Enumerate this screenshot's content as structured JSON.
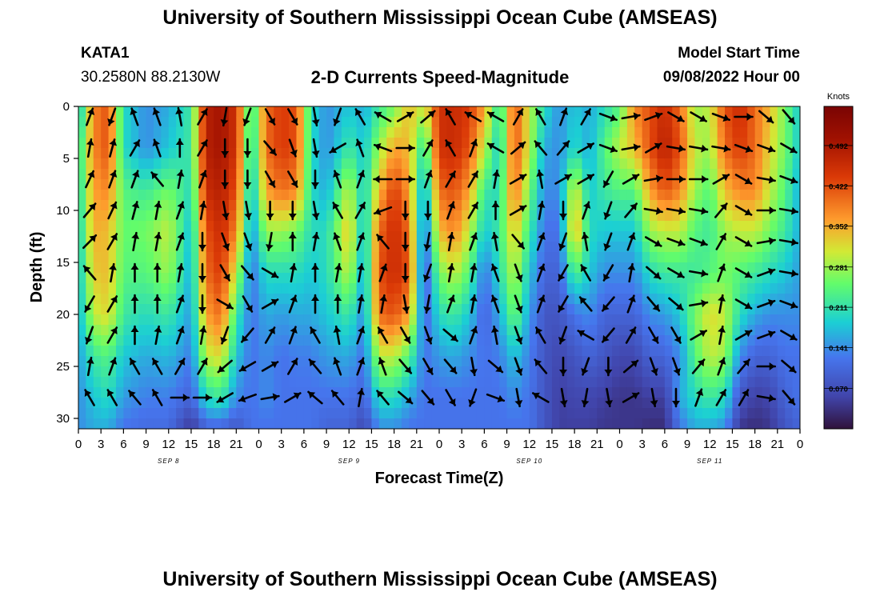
{
  "header": {
    "title": "University of Southern Mississippi Ocean Cube (AMSEAS)",
    "station": "KATA1",
    "coordinates": "30.2580N  88.2130W",
    "subtitle": "2-D Currents Speed-Magnitude",
    "model_start_label": "Model Start Time",
    "model_start_value": "09/08/2022 Hour 00"
  },
  "footer": {
    "title": "University of Southern Mississippi Ocean Cube (AMSEAS)"
  },
  "chart_data": {
    "type": "heatmap",
    "xlabel": "Forecast Time(Z)",
    "ylabel": "Depth (ft)",
    "x_range_hours": [
      0,
      96
    ],
    "y_range_ft": [
      0,
      31
    ],
    "x_tick_labels": [
      "0",
      "3",
      "6",
      "9",
      "12",
      "15",
      "18",
      "21",
      "0",
      "3",
      "6",
      "9",
      "12",
      "15",
      "18",
      "21",
      "0",
      "3",
      "6",
      "9",
      "12",
      "15",
      "18",
      "21",
      "0",
      "3",
      "6",
      "9",
      "12",
      "15",
      "18",
      "21",
      "0"
    ],
    "y_ticks": [
      0,
      5,
      10,
      15,
      20,
      25,
      30
    ],
    "date_labels": [
      {
        "label": "SEP 8",
        "hour": 12
      },
      {
        "label": "SEP 9",
        "hour": 36
      },
      {
        "label": "SEP 10",
        "hour": 60
      },
      {
        "label": "SEP 11",
        "hour": 84
      }
    ],
    "colorbar": {
      "unit": "Knots",
      "ticks": [
        "0.492",
        "0.422",
        "0.352",
        "0.281",
        "0.211",
        "0.141",
        "0.070"
      ],
      "tick_values": [
        0.492,
        0.422,
        0.352,
        0.281,
        0.211,
        0.141,
        0.07
      ],
      "range": [
        0,
        0.56
      ]
    },
    "speed_profiles": [
      {
        "hour": 0,
        "speeds": [
          0.16,
          0.2,
          0.19,
          0.18,
          0.17,
          0.16,
          0.15,
          0.14,
          0.14
        ]
      },
      {
        "hour": 2,
        "speeds": [
          0.38,
          0.38,
          0.36,
          0.35,
          0.33,
          0.3,
          0.22,
          0.18,
          0.16
        ]
      },
      {
        "hour": 4,
        "speeds": [
          0.42,
          0.42,
          0.38,
          0.34,
          0.34,
          0.32,
          0.24,
          0.2,
          0.16
        ]
      },
      {
        "hour": 6,
        "speeds": [
          0.2,
          0.2,
          0.24,
          0.25,
          0.24,
          0.22,
          0.18,
          0.15,
          0.12
        ]
      },
      {
        "hour": 9,
        "speeds": [
          0.14,
          0.14,
          0.22,
          0.26,
          0.24,
          0.2,
          0.16,
          0.13,
          0.11
        ]
      },
      {
        "hour": 12,
        "speeds": [
          0.16,
          0.18,
          0.26,
          0.3,
          0.28,
          0.22,
          0.17,
          0.13,
          0.11
        ]
      },
      {
        "hour": 15,
        "speeds": [
          0.22,
          0.22,
          0.2,
          0.17,
          0.16,
          0.15,
          0.13,
          0.1,
          0.04
        ]
      },
      {
        "hour": 17,
        "speeds": [
          0.48,
          0.48,
          0.46,
          0.42,
          0.4,
          0.36,
          0.3,
          0.2,
          0.1
        ]
      },
      {
        "hour": 19,
        "speeds": [
          0.5,
          0.5,
          0.48,
          0.46,
          0.44,
          0.4,
          0.32,
          0.22,
          0.1
        ]
      },
      {
        "hour": 21,
        "speeds": [
          0.45,
          0.45,
          0.42,
          0.38,
          0.3,
          0.22,
          0.18,
          0.14,
          0.08
        ]
      },
      {
        "hour": 23,
        "speeds": [
          0.2,
          0.18,
          0.16,
          0.14,
          0.12,
          0.12,
          0.12,
          0.12,
          0.12
        ]
      },
      {
        "hour": 25,
        "speeds": [
          0.4,
          0.4,
          0.36,
          0.28,
          0.2,
          0.16,
          0.14,
          0.14,
          0.12
        ]
      },
      {
        "hour": 27,
        "speeds": [
          0.44,
          0.44,
          0.4,
          0.28,
          0.2,
          0.15,
          0.12,
          0.12,
          0.12
        ]
      },
      {
        "hour": 29,
        "speeds": [
          0.42,
          0.42,
          0.38,
          0.26,
          0.2,
          0.16,
          0.13,
          0.12,
          0.12
        ]
      },
      {
        "hour": 31,
        "speeds": [
          0.2,
          0.2,
          0.2,
          0.2,
          0.18,
          0.16,
          0.13,
          0.12,
          0.12
        ]
      },
      {
        "hour": 33,
        "speeds": [
          0.14,
          0.14,
          0.16,
          0.2,
          0.2,
          0.18,
          0.15,
          0.12,
          0.1
        ]
      },
      {
        "hour": 36,
        "speeds": [
          0.18,
          0.22,
          0.3,
          0.34,
          0.3,
          0.22,
          0.16,
          0.12,
          0.1
        ]
      },
      {
        "hour": 38,
        "speeds": [
          0.16,
          0.18,
          0.18,
          0.16,
          0.15,
          0.14,
          0.12,
          0.1,
          0.06
        ]
      },
      {
        "hour": 40,
        "speeds": [
          0.22,
          0.28,
          0.34,
          0.4,
          0.42,
          0.4,
          0.3,
          0.2,
          0.14
        ]
      },
      {
        "hour": 42,
        "speeds": [
          0.26,
          0.36,
          0.44,
          0.46,
          0.46,
          0.42,
          0.3,
          0.2,
          0.14
        ]
      },
      {
        "hour": 44,
        "speeds": [
          0.34,
          0.34,
          0.36,
          0.4,
          0.42,
          0.36,
          0.24,
          0.16,
          0.12
        ]
      },
      {
        "hour": 46,
        "speeds": [
          0.3,
          0.2,
          0.14,
          0.1,
          0.08,
          0.1,
          0.12,
          0.12,
          0.12
        ]
      },
      {
        "hour": 48,
        "speeds": [
          0.45,
          0.45,
          0.4,
          0.34,
          0.26,
          0.2,
          0.15,
          0.12,
          0.12
        ]
      },
      {
        "hour": 50,
        "speeds": [
          0.46,
          0.46,
          0.42,
          0.38,
          0.3,
          0.22,
          0.16,
          0.12,
          0.12
        ]
      },
      {
        "hour": 52,
        "speeds": [
          0.44,
          0.42,
          0.36,
          0.3,
          0.24,
          0.18,
          0.14,
          0.12,
          0.12
        ]
      },
      {
        "hour": 54,
        "speeds": [
          0.36,
          0.3,
          0.22,
          0.18,
          0.12,
          0.1,
          0.12,
          0.12,
          0.12
        ]
      },
      {
        "hour": 56,
        "speeds": [
          0.2,
          0.18,
          0.2,
          0.22,
          0.2,
          0.16,
          0.13,
          0.12,
          0.12
        ]
      },
      {
        "hour": 58,
        "speeds": [
          0.42,
          0.42,
          0.4,
          0.34,
          0.3,
          0.26,
          0.18,
          0.14,
          0.12
        ]
      },
      {
        "hour": 60,
        "speeds": [
          0.3,
          0.3,
          0.26,
          0.22,
          0.18,
          0.15,
          0.13,
          0.12,
          0.12
        ]
      },
      {
        "hour": 62,
        "speeds": [
          0.2,
          0.16,
          0.14,
          0.12,
          0.1,
          0.08,
          0.08,
          0.08,
          0.08
        ]
      },
      {
        "hour": 64,
        "speeds": [
          0.14,
          0.14,
          0.14,
          0.12,
          0.1,
          0.08,
          0.06,
          0.05,
          0.05
        ]
      },
      {
        "hour": 66,
        "speeds": [
          0.18,
          0.2,
          0.32,
          0.36,
          0.24,
          0.12,
          0.08,
          0.06,
          0.05
        ]
      },
      {
        "hour": 68,
        "speeds": [
          0.16,
          0.16,
          0.18,
          0.2,
          0.18,
          0.14,
          0.1,
          0.06,
          0.05
        ]
      },
      {
        "hour": 70,
        "speeds": [
          0.2,
          0.24,
          0.22,
          0.18,
          0.14,
          0.1,
          0.08,
          0.05,
          0.04
        ]
      },
      {
        "hour": 72,
        "speeds": [
          0.24,
          0.3,
          0.24,
          0.18,
          0.14,
          0.1,
          0.06,
          0.04,
          0.04
        ]
      },
      {
        "hour": 74,
        "speeds": [
          0.38,
          0.34,
          0.24,
          0.18,
          0.14,
          0.1,
          0.06,
          0.04,
          0.04
        ]
      },
      {
        "hour": 76,
        "speeds": [
          0.42,
          0.42,
          0.36,
          0.28,
          0.2,
          0.14,
          0.1,
          0.05,
          0.03
        ]
      },
      {
        "hour": 78,
        "speeds": [
          0.46,
          0.48,
          0.42,
          0.3,
          0.22,
          0.15,
          0.1,
          0.05,
          0.03
        ]
      },
      {
        "hour": 80,
        "speeds": [
          0.4,
          0.42,
          0.38,
          0.3,
          0.22,
          0.18,
          0.14,
          0.16,
          0.12
        ]
      },
      {
        "hour": 82,
        "speeds": [
          0.28,
          0.3,
          0.28,
          0.24,
          0.22,
          0.26,
          0.24,
          0.2,
          0.16
        ]
      },
      {
        "hour": 84,
        "speeds": [
          0.3,
          0.28,
          0.24,
          0.22,
          0.24,
          0.32,
          0.3,
          0.22,
          0.16
        ]
      },
      {
        "hour": 86,
        "speeds": [
          0.42,
          0.4,
          0.34,
          0.28,
          0.26,
          0.3,
          0.28,
          0.2,
          0.14
        ]
      },
      {
        "hour": 88,
        "speeds": [
          0.46,
          0.44,
          0.38,
          0.3,
          0.24,
          0.2,
          0.14,
          0.08,
          0.04
        ]
      },
      {
        "hour": 90,
        "speeds": [
          0.4,
          0.4,
          0.38,
          0.3,
          0.22,
          0.16,
          0.1,
          0.05,
          0.03
        ]
      },
      {
        "hour": 92,
        "speeds": [
          0.34,
          0.32,
          0.3,
          0.26,
          0.2,
          0.14,
          0.1,
          0.06,
          0.04
        ]
      },
      {
        "hour": 94,
        "speeds": [
          0.26,
          0.26,
          0.24,
          0.22,
          0.18,
          0.14,
          0.12,
          0.1,
          0.08
        ]
      },
      {
        "hour": 96,
        "speeds": [
          0.18,
          0.18,
          0.16,
          0.16,
          0.15,
          0.14,
          0.12,
          0.12,
          0.1
        ]
      }
    ],
    "profile_depths_ft": [
      0,
      4,
      8,
      12,
      16,
      20,
      24,
      28,
      31
    ],
    "vector_hours": [
      0,
      3,
      6,
      9,
      12,
      15,
      18,
      21,
      24,
      27,
      30,
      33,
      36,
      39,
      42,
      45,
      48,
      51,
      54,
      57,
      60,
      63,
      66,
      69,
      72,
      75,
      78,
      81,
      84,
      87,
      90,
      93
    ],
    "vector_depths_ft": [
      1,
      4,
      7,
      10,
      13,
      16,
      19,
      22,
      25,
      28
    ],
    "vector_direction_deg": [
      [
        20,
        10,
        25,
        40,
        45,
        320,
        210,
        200,
        10,
        330
      ],
      [
        200,
        15,
        20,
        25,
        30,
        10,
        30,
        30,
        20,
        330
      ],
      [
        340,
        30,
        20,
        15,
        10,
        0,
        0,
        0,
        330,
        320
      ],
      [
        340,
        340,
        320,
        10,
        10,
        0,
        0,
        10,
        330,
        330
      ],
      [
        350,
        0,
        10,
        20,
        20,
        10,
        20,
        20,
        30,
        90
      ],
      [
        30,
        30,
        20,
        10,
        180,
        180,
        180,
        10,
        30,
        90
      ],
      [
        190,
        180,
        180,
        170,
        160,
        150,
        120,
        200,
        230,
        240
      ],
      [
        200,
        180,
        180,
        170,
        160,
        140,
        150,
        220,
        240,
        250
      ],
      [
        150,
        140,
        150,
        180,
        190,
        120,
        60,
        30,
        60,
        80
      ],
      [
        150,
        160,
        150,
        180,
        0,
        10,
        20,
        20,
        30,
        60
      ],
      [
        170,
        170,
        180,
        170,
        10,
        0,
        0,
        330,
        320,
        310
      ],
      [
        200,
        240,
        340,
        330,
        340,
        10,
        0,
        350,
        340,
        320
      ],
      [
        330,
        340,
        20,
        30,
        20,
        10,
        10,
        20,
        20,
        10
      ],
      [
        300,
        290,
        270,
        250,
        320,
        20,
        10,
        330,
        340,
        320
      ],
      [
        60,
        90,
        90,
        180,
        180,
        180,
        170,
        150,
        140,
        130
      ],
      [
        50,
        30,
        20,
        180,
        190,
        200,
        190,
        160,
        150,
        140
      ],
      [
        330,
        330,
        30,
        20,
        10,
        10,
        20,
        130,
        140,
        150
      ],
      [
        300,
        20,
        30,
        30,
        20,
        10,
        10,
        20,
        170,
        200
      ],
      [
        300,
        300,
        10,
        0,
        350,
        340,
        340,
        350,
        130,
        110
      ],
      [
        30,
        50,
        60,
        60,
        140,
        160,
        160,
        160,
        160,
        170
      ],
      [
        330,
        320,
        350,
        10,
        20,
        20,
        20,
        330,
        320,
        300
      ],
      [
        20,
        40,
        60,
        180,
        200,
        210,
        210,
        200,
        180,
        170
      ],
      [
        30,
        60,
        60,
        20,
        350,
        330,
        320,
        300,
        200,
        190
      ],
      [
        110,
        110,
        210,
        200,
        200,
        210,
        220,
        220,
        180,
        170
      ],
      [
        80,
        80,
        60,
        40,
        20,
        10,
        20,
        30,
        50,
        60
      ],
      [
        70,
        60,
        80,
        100,
        120,
        130,
        140,
        150,
        160,
        170
      ],
      [
        120,
        100,
        90,
        100,
        110,
        120,
        130,
        150,
        160,
        180
      ],
      [
        120,
        100,
        90,
        100,
        110,
        100,
        80,
        60,
        40,
        20
      ],
      [
        110,
        100,
        60,
        40,
        30,
        20,
        10,
        10,
        20,
        30
      ],
      [
        90,
        110,
        120,
        120,
        120,
        120,
        120,
        60,
        40,
        30
      ],
      [
        130,
        110,
        100,
        90,
        80,
        70,
        70,
        70,
        90,
        100
      ],
      [
        140,
        120,
        110,
        100,
        100,
        100,
        110,
        120,
        130,
        140
      ]
    ]
  }
}
